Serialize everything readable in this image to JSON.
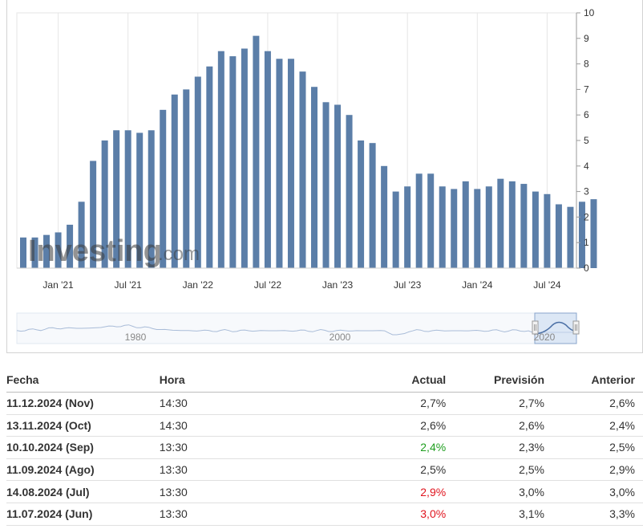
{
  "colors": {
    "bar": "#5b7ea8",
    "nav_line": "#7d9cc4",
    "positive": "#1e9e1e",
    "negative": "#e0141e"
  },
  "watermark": {
    "brand": "Investing",
    "suffix": ".com"
  },
  "chart_data": {
    "type": "bar",
    "categories": [
      "Oct 20",
      "Nov 20",
      "Dec 20",
      "Jan 21",
      "Feb 21",
      "Mar 21",
      "Apr 21",
      "May 21",
      "Jun 21",
      "Jul 21",
      "Aug 21",
      "Sep 21",
      "Oct 21",
      "Nov 21",
      "Dec 21",
      "Jan 22",
      "Feb 22",
      "Mar 22",
      "Apr 22",
      "May 22",
      "Jun 22",
      "Jul 22",
      "Aug 22",
      "Sep 22",
      "Oct 22",
      "Nov 22",
      "Dec 22",
      "Jan 23",
      "Feb 23",
      "Mar 23",
      "Apr 23",
      "May 23",
      "Jun 23",
      "Jul 23",
      "Aug 23",
      "Sep 23",
      "Oct 23",
      "Nov 23",
      "Dec 23",
      "Jan 24",
      "Feb 24",
      "Mar 24",
      "Apr 24",
      "May 24",
      "Jun 24",
      "Jul 24",
      "Aug 24",
      "Sep 24",
      "Oct 24",
      "Nov 24"
    ],
    "values": [
      1.2,
      1.2,
      1.3,
      1.4,
      1.7,
      2.6,
      4.2,
      5.0,
      5.4,
      5.4,
      5.3,
      5.4,
      6.2,
      6.8,
      7.0,
      7.5,
      7.9,
      8.5,
      8.3,
      8.6,
      9.1,
      8.5,
      8.2,
      8.2,
      7.7,
      7.1,
      6.5,
      6.4,
      6.0,
      5.0,
      4.9,
      4.0,
      3.0,
      3.2,
      3.7,
      3.7,
      3.2,
      3.1,
      3.4,
      3.1,
      3.2,
      3.5,
      3.4,
      3.3,
      3.0,
      2.9,
      2.5,
      2.4,
      2.6,
      2.7
    ],
    "x_tick_labels": [
      "Jan '21",
      "Jul '21",
      "Jan '22",
      "Jul '22",
      "Jan '23",
      "Jul '23",
      "Jan '24",
      "Jul '24"
    ],
    "y_ticks": [
      0,
      1,
      2,
      3,
      4,
      5,
      6,
      7,
      8,
      9,
      10
    ],
    "ylim": [
      0,
      10
    ],
    "y_axis_side": "right",
    "grid": "vertical",
    "navigator_labels": [
      "1980",
      "2000",
      "2020"
    ]
  },
  "table": {
    "headers": {
      "date": "Fecha",
      "time": "Hora",
      "actual": "Actual",
      "forecast": "Previsión",
      "previous": "Anterior"
    },
    "rows": [
      {
        "date": "11.12.2024 (Nov)",
        "time": "14:30",
        "actual": "2,7%",
        "actual_status": "neutral",
        "forecast": "2,7%",
        "previous": "2,6%"
      },
      {
        "date": "13.11.2024 (Oct)",
        "time": "14:30",
        "actual": "2,6%",
        "actual_status": "neutral",
        "forecast": "2,6%",
        "previous": "2,4%"
      },
      {
        "date": "10.10.2024 (Sep)",
        "time": "13:30",
        "actual": "2,4%",
        "actual_status": "positive",
        "forecast": "2,3%",
        "previous": "2,5%"
      },
      {
        "date": "11.09.2024 (Ago)",
        "time": "13:30",
        "actual": "2,5%",
        "actual_status": "neutral",
        "forecast": "2,5%",
        "previous": "2,9%"
      },
      {
        "date": "14.08.2024 (Jul)",
        "time": "13:30",
        "actual": "2,9%",
        "actual_status": "negative",
        "forecast": "3,0%",
        "previous": "3,0%"
      },
      {
        "date": "11.07.2024 (Jun)",
        "time": "13:30",
        "actual": "3,0%",
        "actual_status": "negative",
        "forecast": "3,1%",
        "previous": "3,3%"
      }
    ]
  }
}
